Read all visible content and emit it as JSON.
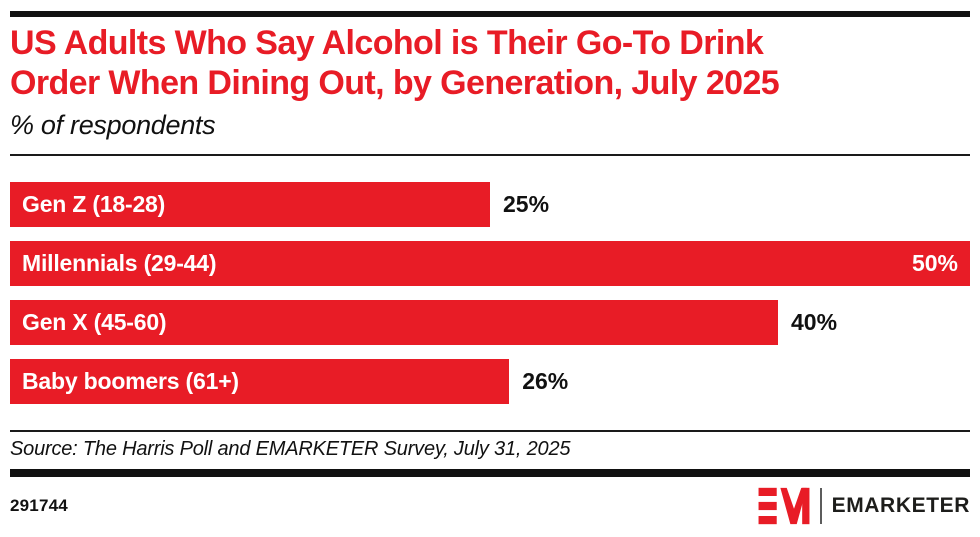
{
  "page": {
    "title_lines": [
      "US Adults Who Say Alcohol is Their Go-To Drink",
      "Order When Dining Out, by Generation, July 2025"
    ],
    "subtitle": "% of respondents",
    "source": "Source: The Harris Poll and EMARKETER Survey, July 31, 2025"
  },
  "colors": {
    "accent_red": "#e81c26",
    "text_black": "#111111",
    "bar_label_white": "#ffffff"
  },
  "chart_data": {
    "type": "bar",
    "orientation": "horizontal",
    "title": "US Adults Who Say Alcohol is Their Go-To Drink Order When Dining Out, by Generation, July 2025",
    "subtitle": "% of respondents",
    "categories": [
      "Gen Z (18-28)",
      "Millennials (29-44)",
      "Gen X (45-60)",
      "Baby boomers (61+)"
    ],
    "values": [
      25,
      50,
      40,
      26
    ],
    "value_labels": [
      "25%",
      "50%",
      "40%",
      "26%"
    ],
    "unit": "%",
    "xlim": [
      0,
      50
    ],
    "grid": false,
    "axis_visible": false,
    "value_label_inside": [
      false,
      true,
      false,
      false
    ],
    "bar_color": "#e81c26"
  },
  "footer": {
    "chart_number": "291744",
    "logo": {
      "mark": "EM-monogram",
      "text": "EMARKETER"
    }
  }
}
